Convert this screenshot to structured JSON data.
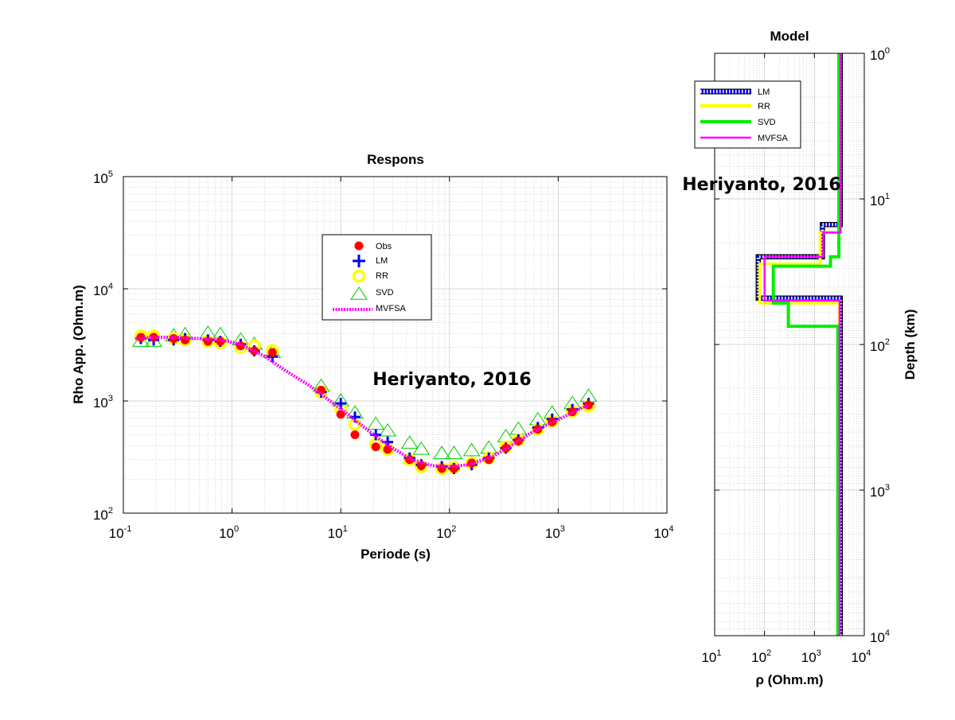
{
  "colors": {
    "obs": "#ff0000",
    "lm": "#0000ff",
    "rr": "#ffff00",
    "svd": "#00cc00",
    "svd_model": "#00ee00",
    "mvfsa": "#ff00ff",
    "grid": "#c8c8c8",
    "axis": "#000000"
  },
  "chart_data": [
    {
      "type": "scatter",
      "title": "Respons",
      "xlabel": "Periode (s)",
      "ylabel": "Rho App. (Ohm.m)",
      "xscale": "log",
      "yscale": "log",
      "xlim": [
        0.1,
        10000
      ],
      "ylim": [
        100,
        100000
      ],
      "grid": true,
      "legend_position": "upper-center",
      "xticks": [
        {
          "base": "10",
          "exp": "-1"
        },
        {
          "base": "10",
          "exp": "0"
        },
        {
          "base": "10",
          "exp": "1"
        },
        {
          "base": "10",
          "exp": "2"
        },
        {
          "base": "10",
          "exp": "3"
        },
        {
          "base": "10",
          "exp": "4"
        }
      ],
      "yticks": [
        {
          "base": "10",
          "exp": "2"
        },
        {
          "base": "10",
          "exp": "3"
        },
        {
          "base": "10",
          "exp": "4"
        },
        {
          "base": "10",
          "exp": "5"
        }
      ],
      "annotation": "Heriyanto, 2016",
      "legend": [
        "Obs",
        "LM",
        "RR",
        "SVD",
        "MVFSA"
      ],
      "series": [
        {
          "name": "Obs",
          "marker": "filled-circle",
          "x": [
            0.145,
            0.19,
            0.29,
            0.37,
            0.6,
            0.78,
            1.2,
            1.6,
            2.35,
            6.6,
            10,
            13.5,
            21,
            27,
            43,
            55,
            85,
            110,
            160,
            230,
            330,
            430,
            650,
            880,
            1350,
            1900
          ],
          "y": [
            3700,
            3700,
            3600,
            3500,
            3400,
            3400,
            3100,
            2800,
            2700,
            1250,
            760,
            500,
            390,
            370,
            300,
            265,
            250,
            250,
            280,
            300,
            380,
            440,
            560,
            650,
            800,
            920
          ]
        },
        {
          "name": "LM",
          "marker": "plus",
          "x": [
            0.145,
            0.19,
            0.29,
            0.37,
            0.6,
            0.78,
            1.2,
            1.6,
            2.35,
            6.6,
            10,
            13.5,
            21,
            27,
            43,
            55,
            85,
            110,
            160,
            230,
            330,
            430,
            650,
            880,
            1350,
            1900
          ],
          "y": [
            3600,
            3500,
            3500,
            3600,
            3500,
            3400,
            3200,
            2800,
            2500,
            1200,
            950,
            720,
            500,
            430,
            310,
            270,
            260,
            250,
            270,
            310,
            380,
            450,
            580,
            690,
            840,
            950
          ]
        },
        {
          "name": "RR",
          "marker": "open-circle",
          "x": [
            0.145,
            0.19,
            0.29,
            0.37,
            0.6,
            0.78,
            1.2,
            1.6,
            2.35,
            6.6,
            10,
            13.5,
            21,
            27,
            43,
            55,
            85,
            110,
            160,
            230,
            330,
            430,
            650,
            880,
            1350,
            1900
          ],
          "y": [
            3800,
            3800,
            3600,
            3500,
            3400,
            3300,
            3000,
            3100,
            2800,
            1200,
            850,
            620,
            410,
            370,
            300,
            260,
            250,
            255,
            280,
            310,
            390,
            450,
            560,
            660,
            810,
            900
          ]
        },
        {
          "name": "SVD",
          "marker": "open-triangle",
          "x": [
            0.145,
            0.19,
            0.29,
            0.37,
            0.6,
            0.78,
            1.2,
            1.6,
            2.35,
            6.6,
            10,
            13.5,
            21,
            27,
            43,
            55,
            85,
            110,
            160,
            230,
            330,
            430,
            650,
            880,
            1350,
            1900
          ],
          "y": [
            3400,
            3400,
            3800,
            3900,
            4000,
            3900,
            3500,
            3200,
            2700,
            1350,
            1000,
            780,
            620,
            540,
            420,
            370,
            340,
            340,
            360,
            380,
            480,
            560,
            680,
            780,
            950,
            1100
          ]
        },
        {
          "name": "MVFSA",
          "marker": "dotted-line",
          "x": [
            0.13,
            0.2,
            0.3,
            0.5,
            0.8,
            1.2,
            2,
            3,
            5,
            8,
            12,
            20,
            30,
            45,
            70,
            100,
            150,
            250,
            400,
            600,
            1000,
            1500,
            1900
          ],
          "y": [
            3600,
            3700,
            3700,
            3600,
            3500,
            3200,
            2500,
            1900,
            1400,
            1000,
            740,
            500,
            380,
            300,
            265,
            260,
            270,
            320,
            420,
            540,
            680,
            830,
            920
          ]
        }
      ]
    },
    {
      "type": "line",
      "title": "Model",
      "xlabel": "ρ (Ohm.m)",
      "ylabel": "Depth (km)",
      "xscale": "log",
      "yscale": "log",
      "y_reversed": true,
      "xlim": [
        10,
        10000
      ],
      "ylim": [
        1,
        10000
      ],
      "grid": true,
      "legend_position": "upper-left",
      "xticks": [
        {
          "base": "10",
          "exp": "1"
        },
        {
          "base": "10",
          "exp": "2"
        },
        {
          "base": "10",
          "exp": "3"
        },
        {
          "base": "10",
          "exp": "4"
        }
      ],
      "yticks": [
        {
          "base": "10",
          "exp": "0"
        },
        {
          "base": "10",
          "exp": "1"
        },
        {
          "base": "10",
          "exp": "2"
        },
        {
          "base": "10",
          "exp": "3"
        },
        {
          "base": "10",
          "exp": "4"
        }
      ],
      "annotation": "Heriyanto, 2016",
      "legend": [
        "LM",
        "RR",
        "SVD",
        "MVFSA"
      ],
      "series": [
        {
          "name": "LM",
          "rho": [
            3300,
            1450,
            75,
            3300
          ],
          "depth_bottoms": [
            15,
            25,
            48,
            10000
          ]
        },
        {
          "name": "RR",
          "rho": [
            3150,
            1300,
            80,
            3100
          ],
          "depth_bottoms": [
            17,
            28,
            52,
            10000
          ]
        },
        {
          "name": "SVD",
          "rho": [
            3100,
            2100,
            150,
            300,
            2950
          ],
          "depth_bottoms": [
            25,
            29,
            52,
            75,
            10000
          ]
        },
        {
          "name": "MVFSA",
          "rho": [
            3350,
            1500,
            100,
            3200
          ],
          "depth_bottoms": [
            17,
            25,
            50,
            10000
          ]
        }
      ]
    }
  ]
}
